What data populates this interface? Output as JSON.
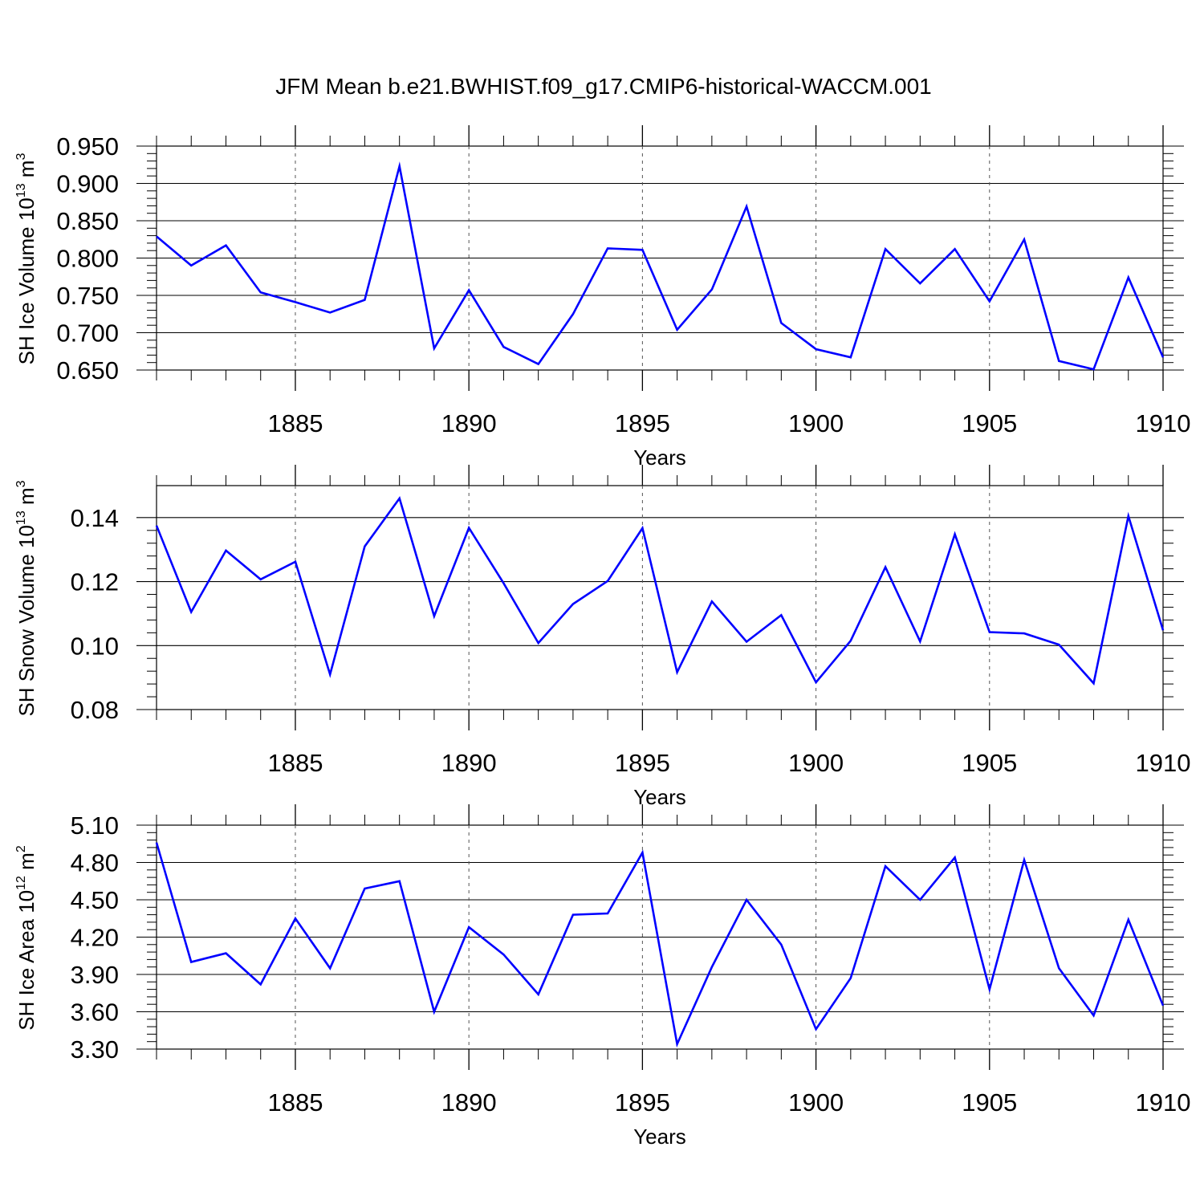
{
  "figure": {
    "title": "JFM Mean b.e21.BWHIST.f09_g17.CMIP6-historical-WACCM.001"
  },
  "chart_data": [
    {
      "type": "line",
      "panel": "ice-volume",
      "ylabel_parts": {
        "pre": "SH Ice Volume 10",
        "exp": "13",
        "mid": " m",
        "exp2": "3"
      },
      "xlabel": "Years",
      "xlim": [
        1881,
        1910
      ],
      "ylim": [
        0.65,
        0.95
      ],
      "yticks": [
        "0.650",
        "0.700",
        "0.750",
        "0.800",
        "0.850",
        "0.900",
        "0.950"
      ],
      "xticks": [
        "1885",
        "1890",
        "1895",
        "1900",
        "1905",
        "1910"
      ],
      "x": [
        1881,
        1882,
        1883,
        1884,
        1885,
        1886,
        1887,
        1888,
        1889,
        1890,
        1891,
        1892,
        1893,
        1894,
        1895,
        1896,
        1897,
        1898,
        1899,
        1900,
        1901,
        1902,
        1903,
        1904,
        1905,
        1906,
        1907,
        1908,
        1909,
        1910
      ],
      "series": [
        {
          "name": "SH Ice Volume",
          "color": "#0000ff",
          "values": [
            0.829,
            0.79,
            0.817,
            0.754,
            0.741,
            0.727,
            0.744,
            0.923,
            0.679,
            0.757,
            0.681,
            0.658,
            0.725,
            0.813,
            0.811,
            0.704,
            0.758,
            0.869,
            0.713,
            0.678,
            0.667,
            0.812,
            0.766,
            0.812,
            0.742,
            0.825,
            0.662,
            0.651,
            0.774,
            0.667
          ]
        }
      ]
    },
    {
      "type": "line",
      "panel": "snow-volume",
      "ylabel_parts": {
        "pre": "SH Snow Volume 10",
        "exp": "13",
        "mid": " m",
        "exp2": "3"
      },
      "xlabel": "Years",
      "xlim": [
        1881,
        1910
      ],
      "ylim": [
        0.08,
        0.15
      ],
      "yticks": [
        "0.08",
        "0.10",
        "0.12",
        "0.14"
      ],
      "xticks": [
        "1885",
        "1890",
        "1895",
        "1900",
        "1905",
        "1910"
      ],
      "x": [
        1881,
        1882,
        1883,
        1884,
        1885,
        1886,
        1887,
        1888,
        1889,
        1890,
        1891,
        1892,
        1893,
        1894,
        1895,
        1896,
        1897,
        1898,
        1899,
        1900,
        1901,
        1902,
        1903,
        1904,
        1905,
        1906,
        1907,
        1908,
        1909,
        1910
      ],
      "series": [
        {
          "name": "SH Snow Volume",
          "color": "#0000ff",
          "values": [
            0.1375,
            0.1105,
            0.1297,
            0.1207,
            0.1262,
            0.091,
            0.131,
            0.146,
            0.1092,
            0.1368,
            0.1195,
            0.1008,
            0.113,
            0.1202,
            0.1367,
            0.0917,
            0.1138,
            0.1012,
            0.1095,
            0.0885,
            0.1015,
            0.1245,
            0.1013,
            0.1348,
            0.1042,
            0.1038,
            0.1003,
            0.0882,
            0.1405,
            0.1048
          ]
        }
      ]
    },
    {
      "type": "line",
      "panel": "ice-area",
      "ylabel_parts": {
        "pre": "SH Ice Area 10",
        "exp": "12",
        "mid": " m",
        "exp2": "2"
      },
      "xlabel": "Years",
      "xlim": [
        1881,
        1910
      ],
      "ylim": [
        3.3,
        5.1
      ],
      "yticks": [
        "3.30",
        "3.60",
        "3.90",
        "4.20",
        "4.50",
        "4.80",
        "5.10"
      ],
      "xticks": [
        "1885",
        "1890",
        "1895",
        "1900",
        "1905",
        "1910"
      ],
      "x": [
        1881,
        1882,
        1883,
        1884,
        1885,
        1886,
        1887,
        1888,
        1889,
        1890,
        1891,
        1892,
        1893,
        1894,
        1895,
        1896,
        1897,
        1898,
        1899,
        1900,
        1901,
        1902,
        1903,
        1904,
        1905,
        1906,
        1907,
        1908,
        1909,
        1910
      ],
      "series": [
        {
          "name": "SH Ice Area",
          "color": "#0000ff",
          "values": [
            4.96,
            4.0,
            4.07,
            3.82,
            4.35,
            3.95,
            4.59,
            4.65,
            3.6,
            4.28,
            4.06,
            3.74,
            4.38,
            4.39,
            4.88,
            3.34,
            3.96,
            4.5,
            4.14,
            3.46,
            3.87,
            4.77,
            4.5,
            4.84,
            3.78,
            4.82,
            3.95,
            3.57,
            4.34,
            3.65
          ]
        }
      ]
    }
  ]
}
